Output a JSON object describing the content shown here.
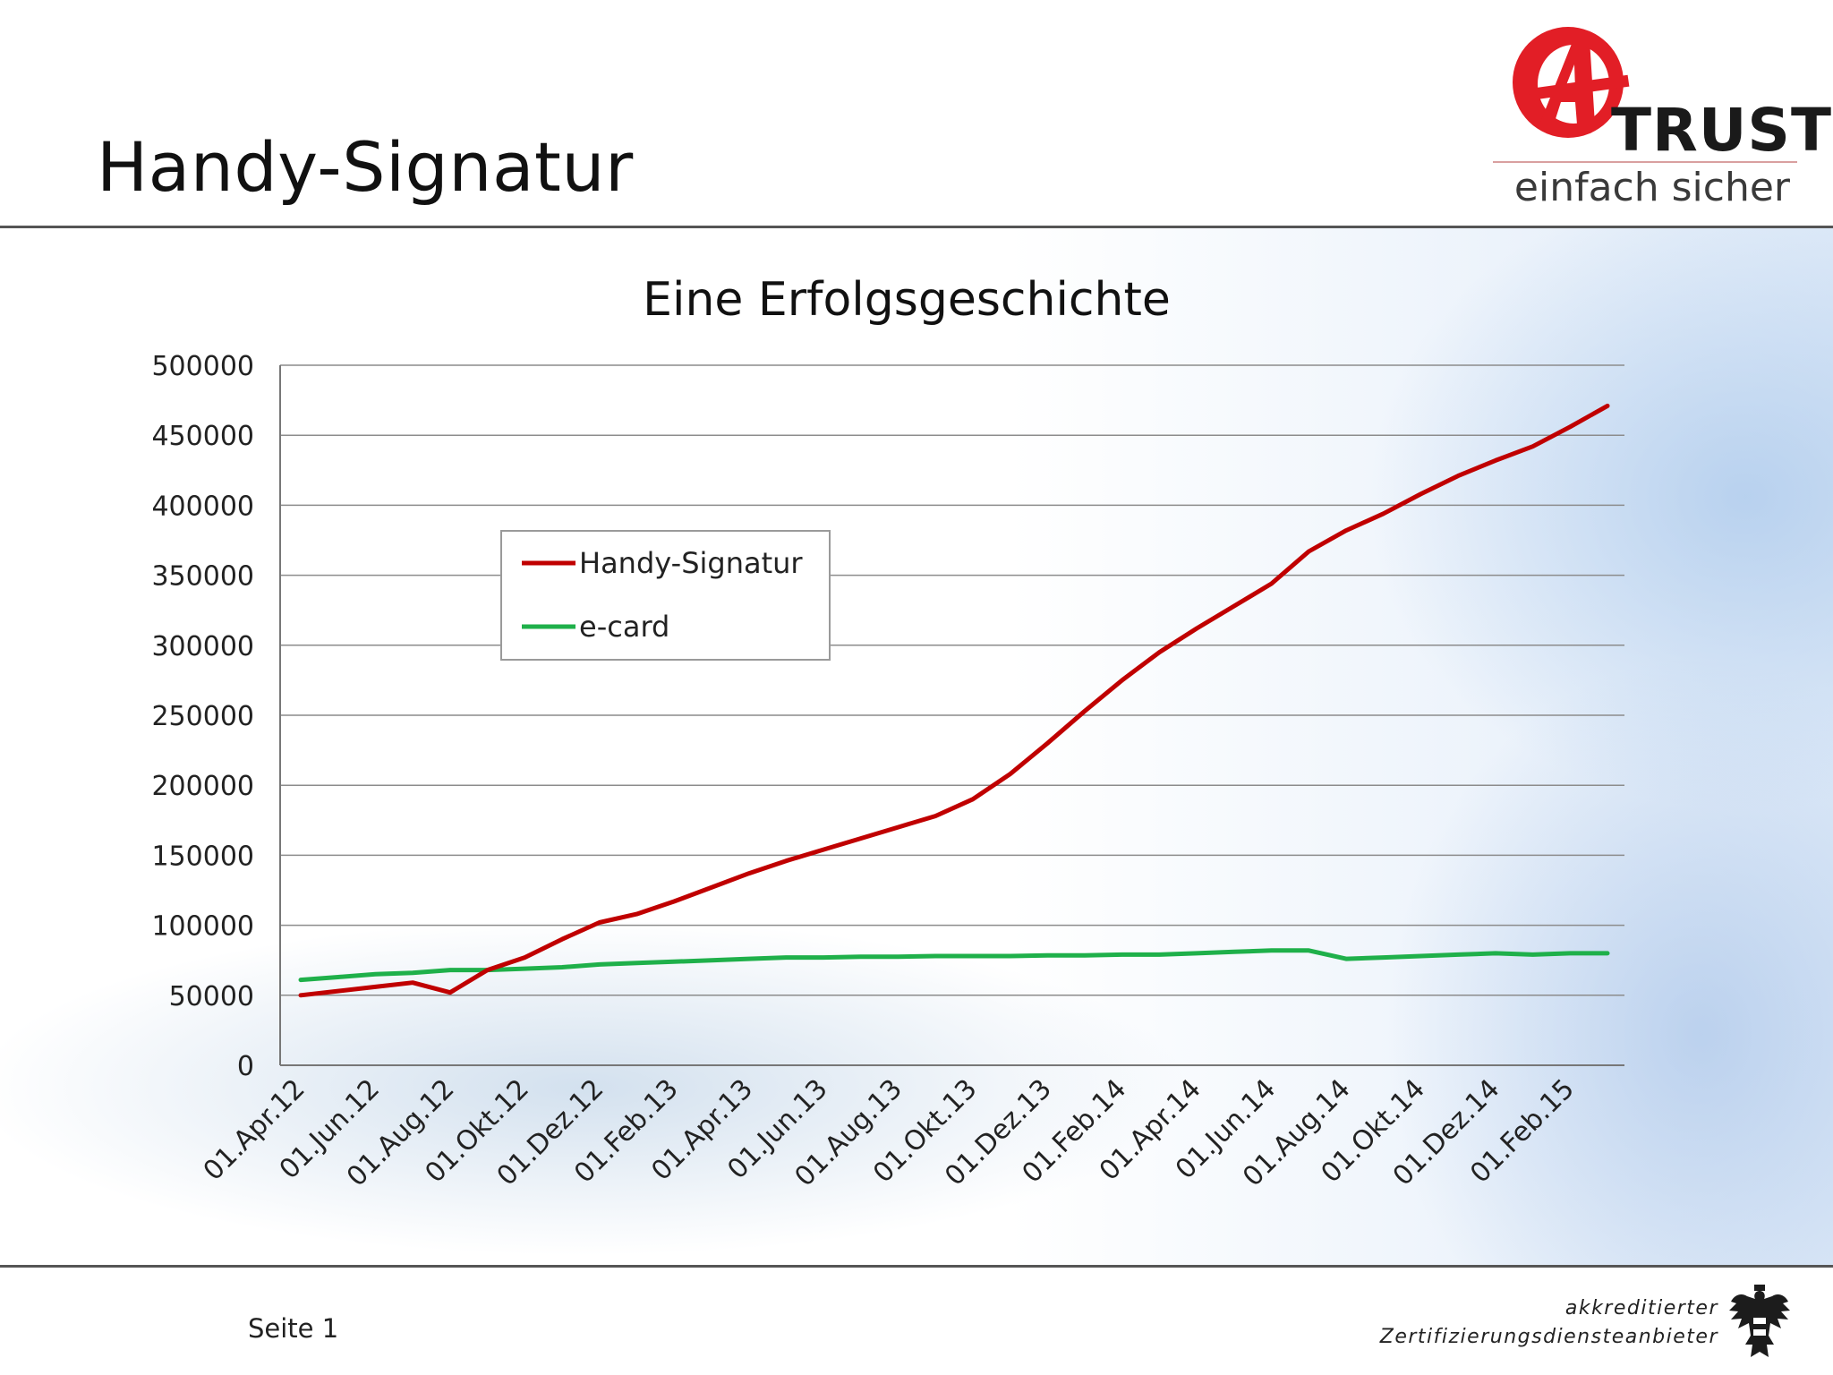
{
  "slide": {
    "title": "Handy-Signatur",
    "page_label": "Seite 1"
  },
  "logo": {
    "brand": "TRUST",
    "tagline": "einfach sicher"
  },
  "footer": {
    "accredit_line1": "akkreditierter",
    "accredit_line2": "Zertifizierungsdiensteanbieter"
  },
  "colors": {
    "handy": "#c00000",
    "ecard": "#1fb04a",
    "grid": "#8c8c8c",
    "logo_red": "#e21e26"
  },
  "chart_data": {
    "type": "line",
    "title": "Eine Erfolgsgeschichte",
    "xlabel": "",
    "ylabel": "",
    "ylim": [
      0,
      500000
    ],
    "yticks": [
      0,
      50000,
      100000,
      150000,
      200000,
      250000,
      300000,
      350000,
      400000,
      450000,
      500000
    ],
    "xticks": [
      "01.Apr.12",
      "01.Jun.12",
      "01.Aug.12",
      "01.Okt.12",
      "01.Dez.12",
      "01.Feb.13",
      "01.Apr.13",
      "01.Jun.13",
      "01.Aug.13",
      "01.Okt.13",
      "01.Dez.13",
      "01.Feb.14",
      "01.Apr.14",
      "01.Jun.14",
      "01.Aug.14",
      "01.Okt.14",
      "01.Dez.14",
      "01.Feb.15"
    ],
    "x": [
      "01.Apr.12",
      "01.Mai.12",
      "01.Jun.12",
      "01.Jul.12",
      "01.Aug.12",
      "01.Sep.12",
      "01.Okt.12",
      "01.Nov.12",
      "01.Dez.12",
      "01.Jan.13",
      "01.Feb.13",
      "01.Mär.13",
      "01.Apr.13",
      "01.Mai.13",
      "01.Jun.13",
      "01.Jul.13",
      "01.Aug.13",
      "01.Sep.13",
      "01.Okt.13",
      "01.Nov.13",
      "01.Dez.13",
      "01.Jan.14",
      "01.Feb.14",
      "01.Mär.14",
      "01.Apr.14",
      "01.Mai.14",
      "01.Jun.14",
      "01.Jul.14",
      "01.Aug.14",
      "01.Sep.14",
      "01.Okt.14",
      "01.Nov.14",
      "01.Dez.14",
      "01.Jan.15",
      "01.Feb.15",
      "01.Mär.15"
    ],
    "series": [
      {
        "name": "Handy-Signatur",
        "values": [
          50000,
          53000,
          56000,
          59000,
          52000,
          68000,
          77000,
          90000,
          102000,
          108000,
          117000,
          127000,
          137000,
          146000,
          154000,
          162000,
          170000,
          178000,
          190000,
          208000,
          230000,
          253000,
          275000,
          295000,
          312000,
          328000,
          344000,
          367000,
          382000,
          394000,
          408000,
          421000,
          432000,
          442000,
          456000,
          471000
        ]
      },
      {
        "name": "e-card",
        "values": [
          61000,
          63000,
          65000,
          66000,
          68000,
          68000,
          69000,
          70000,
          72000,
          73000,
          74000,
          75000,
          76000,
          77000,
          77000,
          77500,
          77500,
          78000,
          78000,
          78000,
          78500,
          78500,
          79000,
          79000,
          80000,
          81000,
          82000,
          82000,
          76000,
          77000,
          78000,
          79000,
          80000,
          79000,
          80000,
          80000
        ]
      }
    ],
    "grid": true,
    "legend": "upper-left inside plot"
  }
}
